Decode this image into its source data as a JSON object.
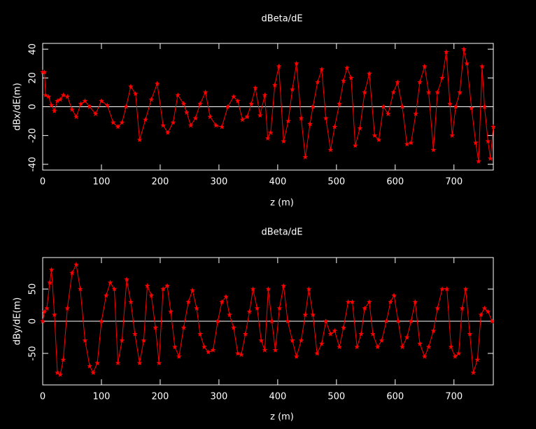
{
  "chart_data": [
    {
      "type": "line",
      "title": "dBeta/dE",
      "xlabel": "z (m)",
      "ylabel": "dBx/dE(m)",
      "color": "#ff0000",
      "x": [
        0,
        3,
        5,
        10,
        15,
        20,
        25,
        30,
        35,
        42,
        50,
        57,
        65,
        72,
        80,
        90,
        100,
        110,
        120,
        128,
        135,
        142,
        150,
        158,
        165,
        175,
        185,
        195,
        205,
        213,
        222,
        230,
        240,
        245,
        252,
        260,
        268,
        277,
        285,
        295,
        305,
        315,
        325,
        332,
        340,
        348,
        355,
        362,
        370,
        378,
        383,
        388,
        395,
        402,
        410,
        418,
        425,
        432,
        440,
        447,
        455,
        460,
        468,
        475,
        482,
        490,
        497,
        505,
        512,
        518,
        525,
        532,
        540,
        548,
        556,
        565,
        572,
        580,
        588,
        597,
        604,
        612,
        620,
        627,
        635,
        642,
        650,
        657,
        665,
        672,
        680,
        687,
        693,
        697,
        703,
        710,
        717,
        722,
        730,
        737,
        742,
        748,
        752,
        758,
        762,
        767
      ],
      "values": [
        24,
        24,
        8,
        7,
        1,
        -3,
        4,
        5,
        8,
        7,
        -2,
        -7,
        2,
        4,
        0,
        -5,
        4,
        1,
        -11,
        -14,
        -11,
        0,
        14,
        9,
        -23,
        -9,
        5,
        16,
        -13,
        -18,
        -11,
        8,
        2,
        -4,
        -13,
        -8,
        2,
        10,
        -7,
        -13,
        -14,
        0,
        7,
        4,
        -9,
        -7,
        2,
        13,
        -6,
        8,
        -22,
        -18,
        15,
        28,
        -24,
        -10,
        12,
        30,
        -8,
        -35,
        -12,
        0,
        17,
        26,
        -8,
        -30,
        -14,
        2,
        18,
        27,
        20,
        -27,
        -15,
        10,
        23,
        -20,
        -23,
        0,
        -5,
        10,
        17,
        0,
        -26,
        -25,
        -5,
        17,
        28,
        10,
        -30,
        10,
        20,
        38,
        2,
        -20,
        0,
        10,
        40,
        30,
        -1,
        -25,
        -38,
        28,
        0,
        -24,
        -36,
        -14
      ],
      "xlim": [
        0,
        767
      ],
      "ylim": [
        -44,
        44
      ],
      "xticks": [
        0,
        100,
        200,
        300,
        400,
        500,
        600,
        700
      ],
      "yticks": [
        -40,
        -20,
        0,
        20,
        40
      ]
    },
    {
      "type": "line",
      "title": "dBeta/dE",
      "xlabel": "z (m)",
      "ylabel": "dBy/dE(m)",
      "color": "#ff0000",
      "x": [
        0,
        3,
        7,
        12,
        15,
        20,
        25,
        30,
        35,
        42,
        50,
        57,
        64,
        72,
        80,
        86,
        93,
        100,
        108,
        115,
        122,
        128,
        135,
        143,
        150,
        157,
        165,
        172,
        178,
        185,
        192,
        198,
        205,
        212,
        218,
        225,
        232,
        240,
        248,
        255,
        262,
        268,
        275,
        282,
        290,
        298,
        305,
        312,
        318,
        325,
        332,
        338,
        345,
        352,
        358,
        365,
        372,
        378,
        384,
        390,
        396,
        403,
        410,
        417,
        425,
        432,
        440,
        447,
        453,
        460,
        467,
        475,
        482,
        490,
        497,
        505,
        512,
        520,
        527,
        535,
        542,
        548,
        556,
        562,
        570,
        577,
        585,
        592,
        598,
        605,
        612,
        620,
        627,
        634,
        642,
        650,
        657,
        665,
        672,
        680,
        688,
        695,
        702,
        708,
        714,
        720,
        727,
        733,
        740,
        746,
        752,
        758,
        765
      ],
      "values": [
        0,
        15,
        20,
        60,
        80,
        10,
        -80,
        -83,
        -60,
        20,
        75,
        88,
        50,
        -30,
        -70,
        -80,
        -65,
        0,
        40,
        60,
        50,
        -65,
        -30,
        65,
        30,
        -20,
        -65,
        -30,
        55,
        40,
        -10,
        -65,
        50,
        55,
        15,
        -40,
        -55,
        -10,
        30,
        48,
        20,
        -20,
        -40,
        -48,
        -45,
        0,
        30,
        38,
        10,
        -10,
        -50,
        -52,
        -20,
        15,
        50,
        20,
        -30,
        -45,
        50,
        0,
        -45,
        20,
        55,
        0,
        -30,
        -55,
        -30,
        10,
        50,
        10,
        -50,
        -35,
        0,
        -20,
        -15,
        -40,
        -10,
        30,
        30,
        -40,
        -20,
        20,
        30,
        -20,
        -40,
        -30,
        0,
        30,
        40,
        0,
        -40,
        -25,
        0,
        30,
        -35,
        -55,
        -40,
        -15,
        20,
        50,
        50,
        -40,
        -55,
        -50,
        20,
        50,
        -20,
        -80,
        -60,
        10,
        20,
        15,
        0
      ],
      "xlim": [
        0,
        767
      ],
      "ylim": [
        -99,
        99
      ],
      "xticks": [
        0,
        100,
        200,
        300,
        400,
        500,
        600,
        700
      ],
      "yticks": [
        -50,
        0,
        50
      ]
    }
  ]
}
